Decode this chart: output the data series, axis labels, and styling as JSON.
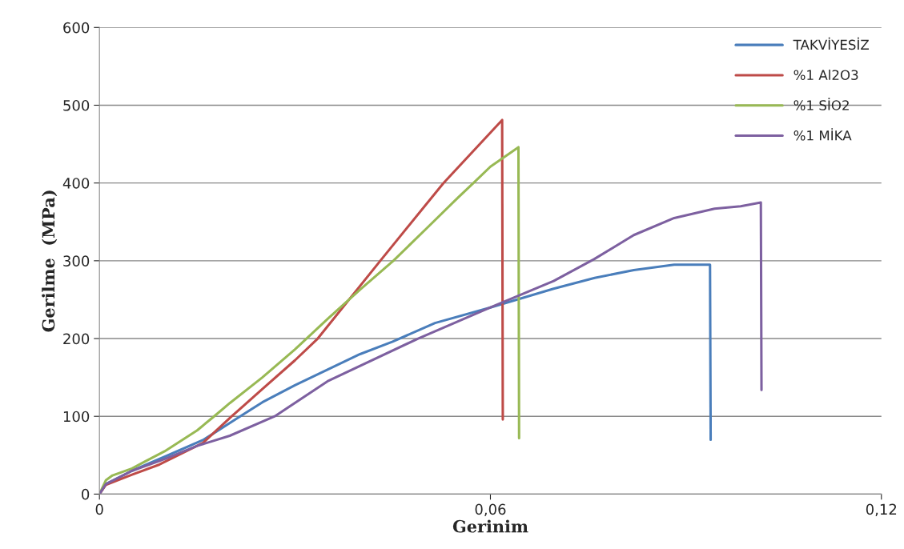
{
  "chart_data": {
    "type": "line",
    "xlabel": "Gerinim",
    "ylabel": "Gerilme  (MPa)",
    "xlim": [
      0,
      0.12
    ],
    "xticks": [
      {
        "value": 0,
        "label": "0"
      },
      {
        "value": 0.06,
        "label": "0,06"
      },
      {
        "value": 0.12,
        "label": "0,12"
      }
    ],
    "ylim": [
      0,
      600
    ],
    "yticks": [
      0,
      100,
      200,
      300,
      400,
      500,
      600
    ],
    "grid": "y",
    "legend": "top right",
    "marker": "none",
    "line_style": "solid",
    "series": [
      {
        "name": "TAKVİYESİZ",
        "color": "#4a7ebb",
        "x": [
          0,
          0.001,
          0.005,
          0.01,
          0.016,
          0.0216,
          0.025,
          0.03,
          0.035,
          0.04,
          0.045,
          0.0515,
          0.06,
          0.0697,
          0.076,
          0.082,
          0.0882,
          0.0937,
          0.0938
        ],
        "values": [
          0,
          13,
          30,
          48,
          70,
          100,
          118,
          140,
          160,
          180,
          196,
          220,
          240,
          264,
          278,
          288,
          295,
          295,
          70
        ]
      },
      {
        "name": "%1 Al2O3",
        "color": "#be4b48",
        "x": [
          0,
          0.001,
          0.005,
          0.0092,
          0.0159,
          0.0203,
          0.025,
          0.03,
          0.0335,
          0.0431,
          0.0528,
          0.0618,
          0.0619
        ],
        "values": [
          0,
          12,
          25,
          38,
          66,
          100,
          135,
          172,
          200,
          300,
          400,
          481,
          96
        ]
      },
      {
        "name": "%1 SİO2",
        "color": "#98b954",
        "x": [
          0,
          0.001,
          0.002,
          0.005,
          0.007,
          0.01,
          0.015,
          0.0176,
          0.02,
          0.025,
          0.03,
          0.035,
          0.04,
          0.0451,
          0.05,
          0.055,
          0.0574,
          0.06,
          0.0643,
          0.0644
        ],
        "values": [
          0,
          18,
          24,
          33,
          42,
          55,
          82,
          100,
          117,
          150,
          186,
          225,
          263,
          300,
          340,
          381,
          400,
          421,
          446,
          72
        ]
      },
      {
        "name": "%1 MİKA",
        "color": "#7d60a0",
        "x": [
          0,
          0.001,
          0.005,
          0.01,
          0.015,
          0.02,
          0.0269,
          0.035,
          0.0489,
          0.06,
          0.0697,
          0.0759,
          0.082,
          0.0882,
          0.0944,
          0.0984,
          0.1015,
          0.1016
        ],
        "values": [
          0,
          13,
          30,
          45,
          62,
          75,
          100,
          145,
          200,
          240,
          274,
          302,
          333,
          355,
          367,
          370,
          375,
          134
        ]
      }
    ]
  }
}
